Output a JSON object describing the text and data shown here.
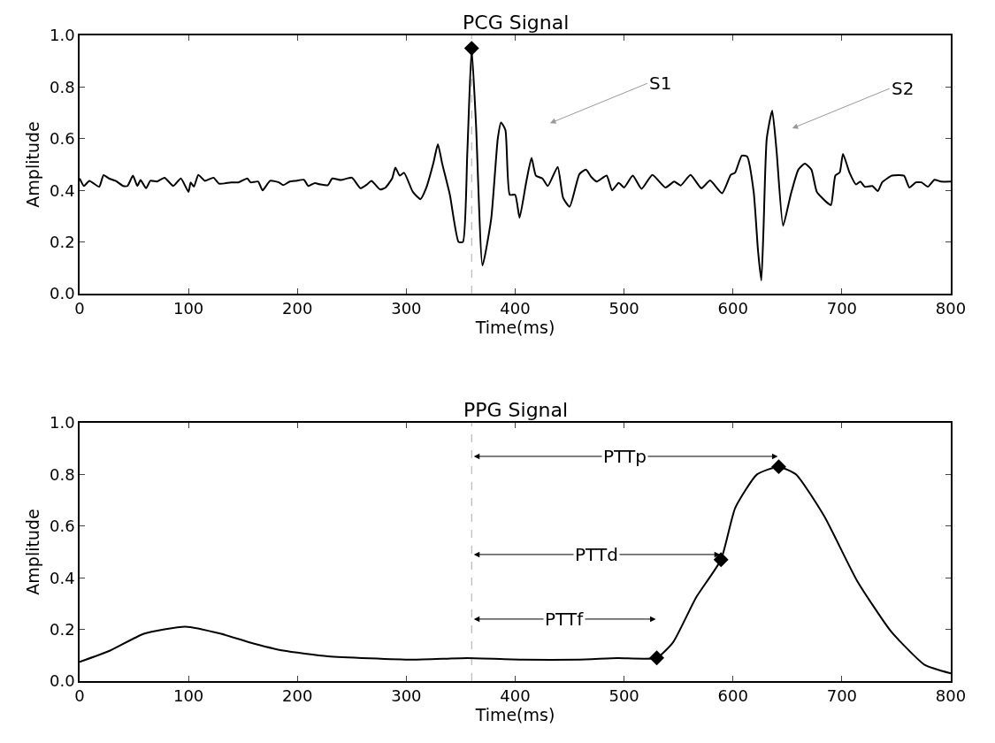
{
  "chart_data": [
    {
      "type": "line",
      "title": "PCG Signal",
      "xlabel": "Time(ms)",
      "ylabel": "Amplitude",
      "xlim": [
        0,
        800
      ],
      "ylim": [
        0,
        1
      ],
      "xticks": [
        0,
        100,
        200,
        300,
        400,
        500,
        600,
        700,
        800
      ],
      "yticks": [
        {
          "value": 0,
          "label": "0.0"
        },
        {
          "value": 0.2,
          "label": "0.2"
        },
        {
          "value": 0.4,
          "label": "0.4"
        },
        {
          "value": 0.6,
          "label": "0.6"
        },
        {
          "value": 0.8,
          "label": "0.8"
        },
        {
          "value": 1,
          "label": "1.0"
        }
      ],
      "grid": false,
      "series": [
        {
          "color": "#000000",
          "marker": "none",
          "line_style": "solid",
          "x": [
            0,
            4,
            9,
            18,
            22,
            27,
            33,
            40,
            44,
            49,
            53,
            56,
            61,
            65,
            71,
            78,
            86,
            93,
            100,
            102,
            105,
            109,
            115,
            123,
            128,
            139,
            146,
            154,
            157,
            164,
            168,
            175,
            183,
            187,
            193,
            199,
            206,
            210,
            216,
            221,
            228,
            232,
            240,
            250,
            258,
            264,
            268,
            276,
            281,
            287,
            290,
            294,
            298,
            306,
            313,
            318,
            325,
            329,
            333,
            340,
            348,
            352,
            356,
            360,
            364,
            370,
            378,
            384,
            387,
            391,
            395,
            400,
            404,
            410,
            415,
            419,
            425,
            430,
            439,
            444,
            450,
            459,
            465,
            470,
            475,
            484,
            489,
            495,
            500,
            508,
            516,
            526,
            538,
            546,
            552,
            561,
            571,
            579,
            590,
            598,
            602,
            608,
            613,
            619,
            623,
            626,
            628,
            631,
            636,
            640,
            646,
            653,
            660,
            666,
            672,
            677,
            686,
            690,
            694,
            698,
            701,
            707,
            713,
            717,
            721,
            728,
            733,
            737,
            746,
            757,
            762,
            768,
            773,
            779,
            785,
            791,
            800
          ],
          "values": [
            0.446,
            0.417,
            0.437,
            0.414,
            0.459,
            0.446,
            0.437,
            0.417,
            0.417,
            0.457,
            0.417,
            0.44,
            0.408,
            0.437,
            0.434,
            0.449,
            0.417,
            0.446,
            0.394,
            0.431,
            0.414,
            0.46,
            0.437,
            0.449,
            0.426,
            0.431,
            0.431,
            0.446,
            0.431,
            0.434,
            0.4,
            0.437,
            0.431,
            0.42,
            0.434,
            0.437,
            0.441,
            0.417,
            0.428,
            0.423,
            0.42,
            0.446,
            0.44,
            0.449,
            0.408,
            0.423,
            0.437,
            0.403,
            0.411,
            0.446,
            0.488,
            0.457,
            0.468,
            0.394,
            0.366,
            0.406,
            0.508,
            0.579,
            0.503,
            0.383,
            0.2,
            0.2,
            0.543,
            0.95,
            0.657,
            0.109,
            0.291,
            0.6,
            0.663,
            0.634,
            0.383,
            0.383,
            0.294,
            0.429,
            0.526,
            0.457,
            0.446,
            0.417,
            0.491,
            0.371,
            0.337,
            0.463,
            0.48,
            0.451,
            0.434,
            0.457,
            0.4,
            0.429,
            0.411,
            0.457,
            0.406,
            0.46,
            0.411,
            0.434,
            0.419,
            0.46,
            0.408,
            0.438,
            0.389,
            0.46,
            0.469,
            0.534,
            0.531,
            0.394,
            0.166,
            0.051,
            0.246,
            0.6,
            0.709,
            0.554,
            0.263,
            0.383,
            0.48,
            0.503,
            0.48,
            0.394,
            0.354,
            0.343,
            0.457,
            0.469,
            0.541,
            0.469,
            0.423,
            0.434,
            0.414,
            0.417,
            0.397,
            0.431,
            0.457,
            0.457,
            0.411,
            0.431,
            0.431,
            0.414,
            0.441,
            0.434,
            0.434
          ]
        },
        {
          "type": "scatter",
          "color": "#000000",
          "marker": "diamond",
          "x": [
            360
          ],
          "values": [
            0.95
          ]
        }
      ],
      "ref_lines": [
        {
          "axis": "x",
          "value": 360,
          "color": "#aaaaaa",
          "line_style": "dashed"
        }
      ],
      "annotations": [
        "S1",
        "S2"
      ]
    },
    {
      "type": "line",
      "title": "PPG Signal",
      "xlabel": "Time(ms)",
      "ylabel": "Amplitude",
      "xlim": [
        0,
        800
      ],
      "ylim": [
        0,
        1
      ],
      "xticks": [
        0,
        100,
        200,
        300,
        400,
        500,
        600,
        700,
        800
      ],
      "yticks": [
        {
          "value": 0,
          "label": "0.0"
        },
        {
          "value": 0.2,
          "label": "0.2"
        },
        {
          "value": 0.4,
          "label": "0.4"
        },
        {
          "value": 0.6,
          "label": "0.6"
        },
        {
          "value": 0.8,
          "label": "0.8"
        },
        {
          "value": 1,
          "label": "1.0"
        }
      ],
      "grid": false,
      "series": [
        {
          "color": "#000000",
          "marker": "none",
          "line_style": "solid",
          "x": [
            0,
            28,
            59,
            97,
            130,
            156,
            187,
            228,
            305,
            356,
            407,
            458,
            494,
            530,
            545,
            566,
            589,
            602,
            622,
            642,
            658,
            684,
            714,
            745,
            776,
            800
          ],
          "values": [
            0.074,
            0.118,
            0.183,
            0.211,
            0.183,
            0.15,
            0.118,
            0.096,
            0.083,
            0.089,
            0.083,
            0.083,
            0.089,
            0.09,
            0.15,
            0.323,
            0.47,
            0.67,
            0.8,
            0.83,
            0.8,
            0.637,
            0.388,
            0.193,
            0.063,
            0.03
          ]
        },
        {
          "type": "scatter",
          "color": "#000000",
          "marker": "diamond",
          "x": [
            530,
            589,
            642
          ],
          "values": [
            0.09,
            0.47,
            0.83
          ]
        }
      ],
      "ref_lines": [
        {
          "axis": "x",
          "value": 360,
          "color": "#aaaaaa",
          "line_style": "dashed"
        }
      ],
      "annotations": [
        "PTTf",
        "PTTd",
        "PTTp"
      ]
    }
  ]
}
